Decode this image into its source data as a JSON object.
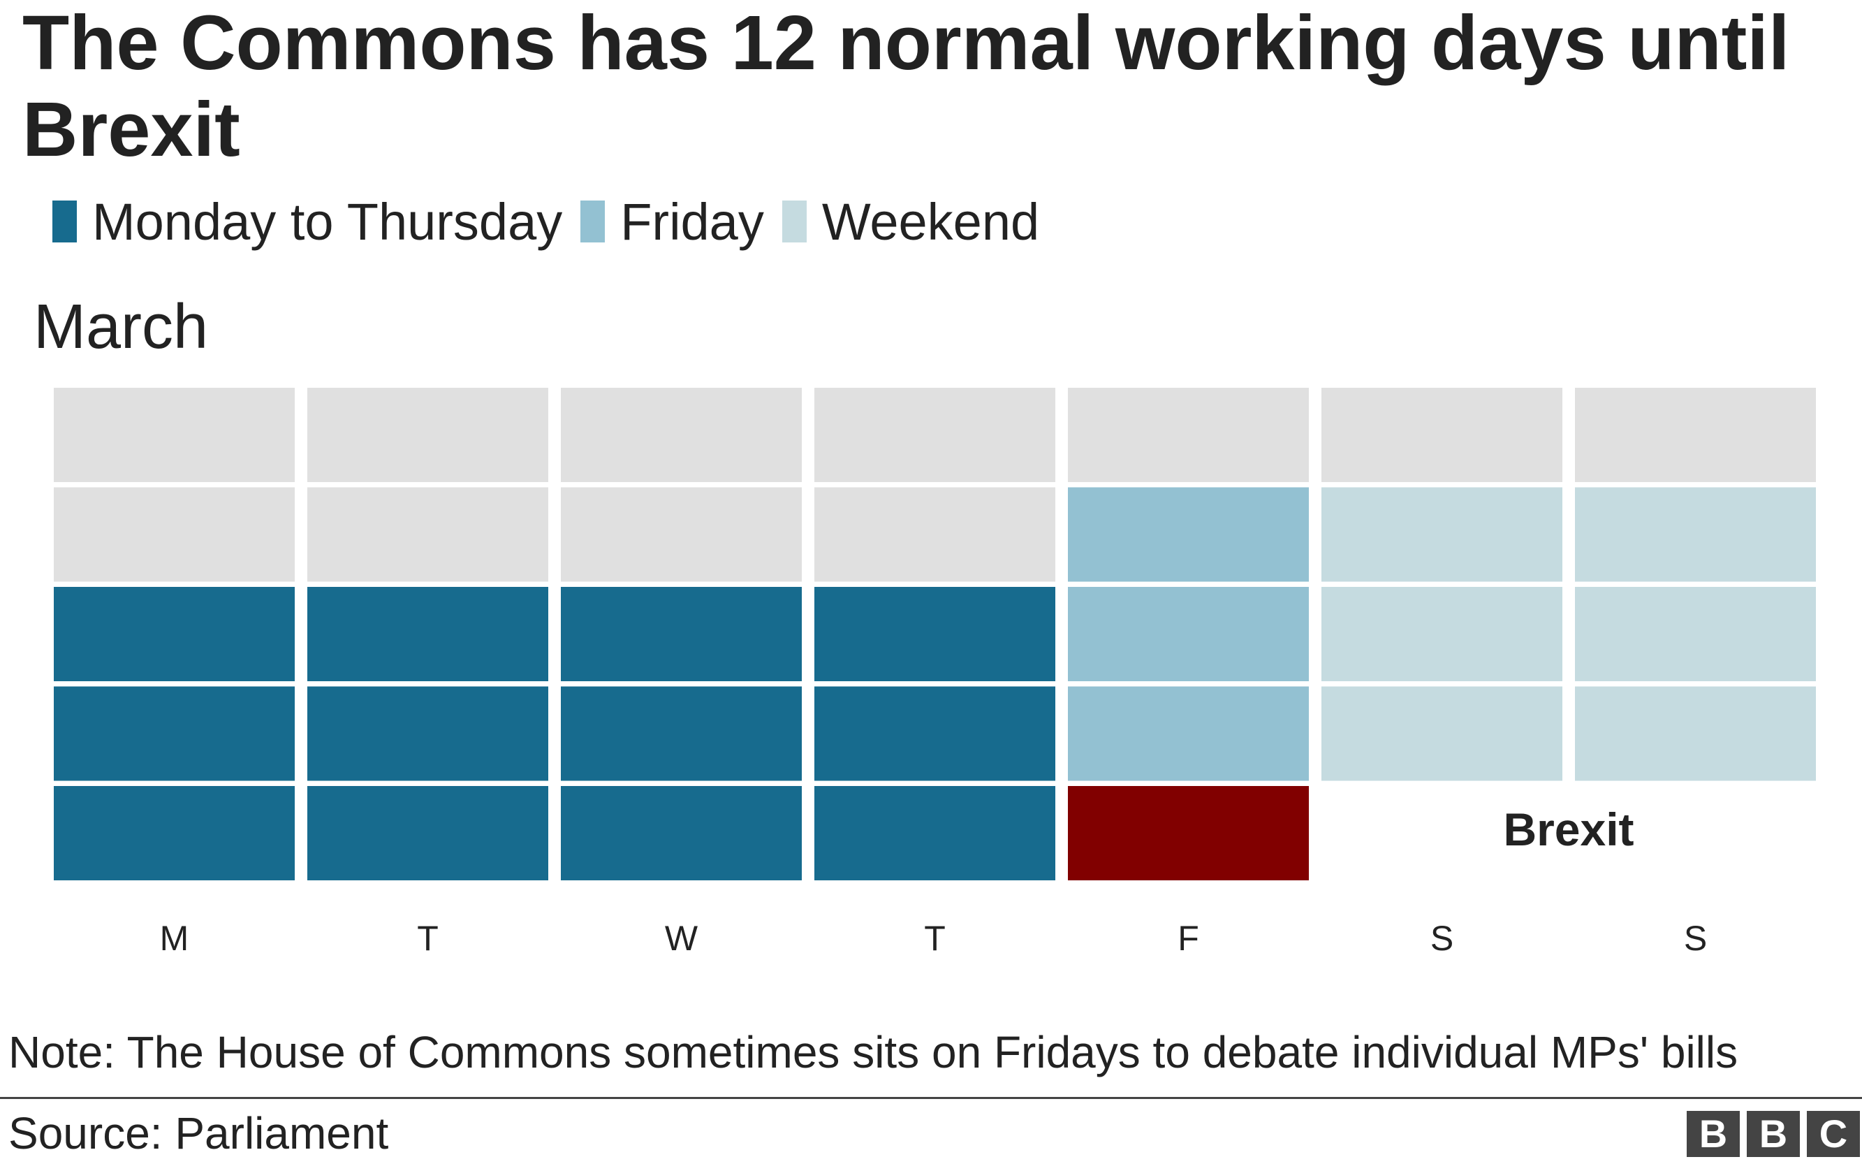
{
  "title": "The Commons has 12 normal working days until Brexit",
  "legend": [
    {
      "label": "Monday to Thursday",
      "color": "#176b8e"
    },
    {
      "label": "Friday",
      "color": "#93c1d2"
    },
    {
      "label": "Weekend",
      "color": "#c5dbe0"
    }
  ],
  "month_label": "March",
  "note": "Note: The House of Commons sometimes sits on Fridays to debate individual MPs' bills",
  "source": "Source: Parliament",
  "logo": [
    "B",
    "B",
    "C"
  ],
  "chart_data": {
    "type": "heatmap",
    "title": "The Commons has 12 normal working days until Brexit",
    "month": "March",
    "columns": [
      "M",
      "T",
      "W",
      "T",
      "F",
      "S",
      "S"
    ],
    "weeks": [
      [
        "out",
        "out",
        "out",
        "out",
        "out",
        "out",
        "out"
      ],
      [
        "out",
        "out",
        "out",
        "out",
        "friday",
        "weekend",
        "weekend"
      ],
      [
        "mon-thu",
        "mon-thu",
        "mon-thu",
        "mon-thu",
        "friday",
        "weekend",
        "weekend"
      ],
      [
        "mon-thu",
        "mon-thu",
        "mon-thu",
        "mon-thu",
        "friday",
        "weekend",
        "weekend"
      ],
      [
        "mon-thu",
        "mon-thu",
        "mon-thu",
        "mon-thu",
        "brexit",
        "none",
        "none"
      ]
    ],
    "categories": {
      "out": {
        "label": "",
        "color": "#e0e0e0"
      },
      "mon-thu": {
        "label": "Monday to Thursday",
        "color": "#176b8e"
      },
      "friday": {
        "label": "Friday",
        "color": "#93c1d2"
      },
      "weekend": {
        "label": "Weekend",
        "color": "#c5dbe0"
      },
      "brexit": {
        "label": "Brexit",
        "color": "#810000"
      }
    },
    "annotation": {
      "text": "Brexit",
      "week": 4,
      "columns": [
        5,
        6
      ]
    },
    "working_days_until_brexit": 12
  }
}
